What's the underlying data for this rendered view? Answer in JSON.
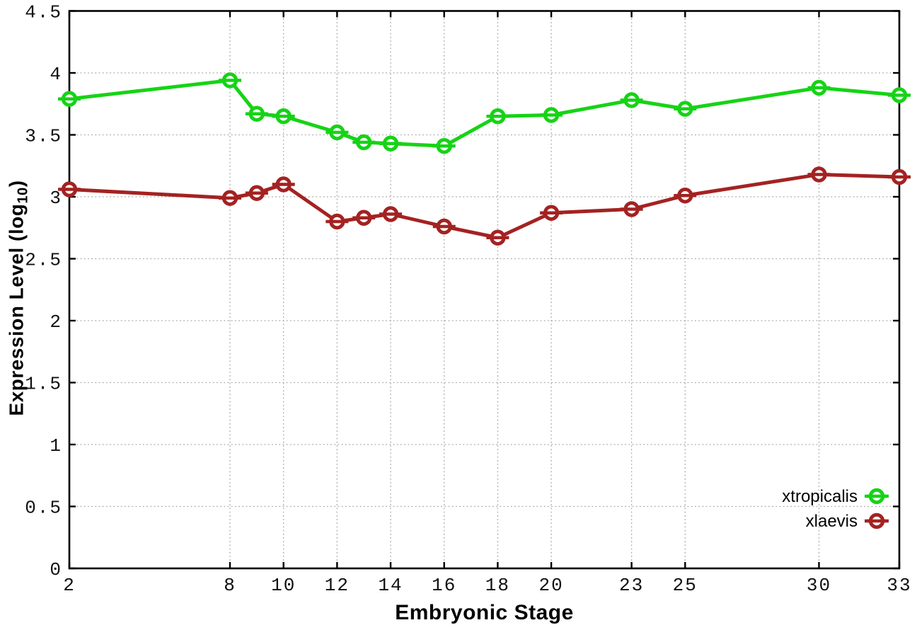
{
  "chart_data": {
    "type": "line",
    "title": "",
    "xlabel": "Embryonic Stage",
    "ylabel": {
      "main": "Expression Level (log",
      "sub": "10",
      "close": ")"
    },
    "x": [
      2,
      8,
      9,
      10,
      12,
      13,
      14,
      16,
      18,
      20,
      23,
      25,
      30,
      33
    ],
    "series": [
      {
        "name": "xtropicalis",
        "color": "#16d316",
        "values": [
          3.79,
          3.94,
          3.67,
          3.65,
          3.52,
          3.44,
          3.43,
          3.41,
          3.65,
          3.66,
          3.78,
          3.71,
          3.88,
          3.82
        ]
      },
      {
        "name": "xlaevis",
        "color": "#a42222",
        "values": [
          3.06,
          2.99,
          3.03,
          3.1,
          2.8,
          2.83,
          2.86,
          2.76,
          2.67,
          2.87,
          2.9,
          3.01,
          3.18,
          3.16
        ]
      }
    ],
    "xticks": [
      2,
      8,
      10,
      12,
      14,
      16,
      18,
      20,
      23,
      25,
      30,
      33
    ],
    "yticks": [
      0,
      0.5,
      1,
      1.5,
      2,
      2.5,
      3,
      3.5,
      4,
      4.5
    ],
    "xlim": [
      2,
      33
    ],
    "ylim": [
      0,
      4.5
    ],
    "grid": true,
    "grid_style": "dotted",
    "grid_color": "#a8a8a8",
    "axis_color": "#000000",
    "background": "#ffffff",
    "marker": "open-circle-with-errorbar",
    "legend_position": "bottom-right",
    "legend_entries": [
      "xtropicalis",
      "xlaevis"
    ]
  }
}
